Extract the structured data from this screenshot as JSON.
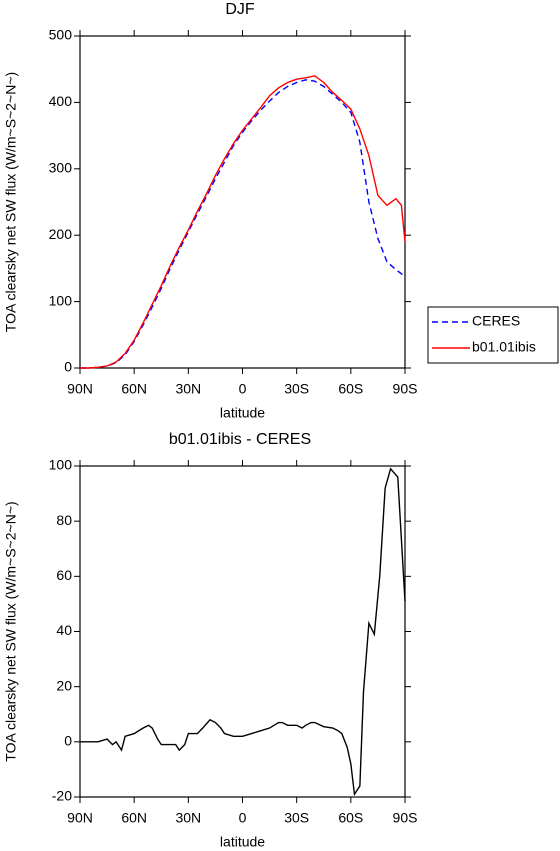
{
  "chart_data": [
    {
      "type": "line",
      "title": "DJF",
      "xlabel": "latitude",
      "ylabel": "TOA clearsky net SW flux (W/m~S~2~N~)",
      "x": [
        90,
        85,
        80,
        75,
        70,
        65,
        60,
        55,
        50,
        45,
        40,
        35,
        30,
        25,
        20,
        15,
        10,
        5,
        0,
        -5,
        -10,
        -15,
        -20,
        -25,
        -30,
        -35,
        -40,
        -45,
        -50,
        -55,
        -60,
        -65,
        -70,
        -75,
        -80,
        -85,
        -88,
        -90
      ],
      "series": [
        {
          "name": "CERES",
          "color": "#0000ff",
          "dashed": true,
          "values": [
            0,
            0,
            1,
            3,
            8,
            20,
            40,
            65,
            92,
            120,
            150,
            178,
            205,
            232,
            258,
            285,
            310,
            335,
            355,
            372,
            388,
            402,
            415,
            424,
            430,
            434,
            432,
            424,
            412,
            400,
            385,
            340,
            250,
            195,
            160,
            148,
            142,
            137
          ]
        },
        {
          "name": "b01.01ibis",
          "color": "#ff0000",
          "dashed": false,
          "values": [
            0,
            0,
            1,
            3,
            9,
            22,
            42,
            68,
            96,
            124,
            154,
            182,
            208,
            236,
            262,
            290,
            315,
            338,
            358,
            375,
            392,
            410,
            422,
            430,
            435,
            437,
            440,
            430,
            415,
            403,
            390,
            360,
            320,
            260,
            245,
            255,
            245,
            190
          ]
        }
      ],
      "xlim": [
        90,
        -90
      ],
      "xticks": [
        {
          "value": 90,
          "label": "90N"
        },
        {
          "value": 60,
          "label": "60N"
        },
        {
          "value": 30,
          "label": "30N"
        },
        0,
        {
          "value": -30,
          "label": "30S"
        },
        {
          "value": -60,
          "label": "60S"
        },
        {
          "value": -90,
          "label": "90S"
        }
      ],
      "ylim": [
        0,
        500
      ],
      "yticks": [
        0,
        100,
        200,
        300,
        400,
        500
      ],
      "legend": "right"
    },
    {
      "type": "line",
      "title": "b01.01ibis - CERES",
      "xlabel": "latitude",
      "ylabel": "TOA clearsky net SW flux (W/m~S~2~N~)",
      "x": [
        90,
        85,
        80,
        75,
        72,
        70,
        67,
        65,
        60,
        55,
        52,
        50,
        47,
        45,
        40,
        37,
        35,
        32,
        30,
        25,
        22,
        18,
        15,
        12,
        10,
        5,
        0,
        -5,
        -10,
        -15,
        -20,
        -22,
        -25,
        -30,
        -33,
        -35,
        -38,
        -40,
        -45,
        -50,
        -53,
        -55,
        -58,
        -60,
        -62,
        -65,
        -67,
        -70,
        -73,
        -76,
        -79,
        -82,
        -86,
        -90
      ],
      "values": [
        0,
        0,
        0,
        1,
        -1,
        0,
        -3,
        2,
        3,
        5,
        6,
        5,
        1,
        -1,
        -1,
        -1,
        -3,
        -1,
        3,
        3,
        5,
        8,
        7,
        5,
        3,
        2,
        2,
        3,
        4,
        5,
        7,
        7,
        6,
        6,
        5,
        6,
        7,
        7,
        5.5,
        5,
        4,
        3,
        -2,
        -8,
        -19,
        -16,
        18,
        43,
        39,
        60,
        92,
        99,
        96,
        51
      ],
      "color": "#000000",
      "xlim": [
        90,
        -90
      ],
      "xticks": [
        {
          "value": 90,
          "label": "90N"
        },
        {
          "value": 60,
          "label": "60N"
        },
        {
          "value": 30,
          "label": "30N"
        },
        0,
        {
          "value": -30,
          "label": "30S"
        },
        {
          "value": -60,
          "label": "60S"
        },
        {
          "value": -90,
          "label": "90S"
        }
      ],
      "ylim": [
        -20,
        100
      ],
      "yticks": [
        -20,
        0,
        20,
        40,
        60,
        80,
        100
      ]
    }
  ]
}
